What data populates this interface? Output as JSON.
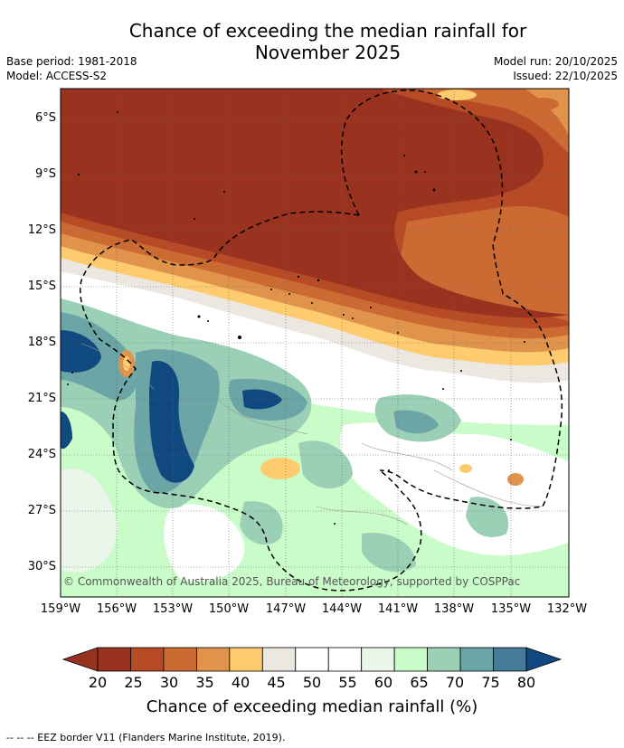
{
  "title_line1": "Chance of exceeding the median rainfall for",
  "title_line2": "November 2025",
  "base_period": "Base period: 1981-2018",
  "model": "Model: ACCESS-S2",
  "model_run": "Model run: 20/10/2025",
  "issued": "Issued: 22/10/2025",
  "lat_labels": [
    "6°S",
    "9°S",
    "12°S",
    "15°S",
    "18°S",
    "21°S",
    "24°S",
    "27°S",
    "30°S"
  ],
  "lon_labels": [
    "159°W",
    "156°W",
    "153°W",
    "150°W",
    "147°W",
    "144°W",
    "141°W",
    "138°W",
    "135°W",
    "132°W"
  ],
  "copyright": "© Commonwealth of Australia 2025, Bureau of Meteorology, supported by COSPPac",
  "colorbar": {
    "ticks": [
      "20",
      "25",
      "30",
      "35",
      "40",
      "45",
      "50",
      "55",
      "60",
      "65",
      "70",
      "75",
      "80"
    ],
    "colors": [
      "#9a3220",
      "#b64b26",
      "#cc6a34",
      "#e0944b",
      "#fecb6e",
      "#ece7e1",
      "#ffffff",
      "#ffffff",
      "#e9f6e9",
      "#c9fcc9",
      "#9bcfb6",
      "#6ba5a5",
      "#467c9a"
    ],
    "low_color": "#95331f",
    "high_color": "#10497f",
    "title": "Chance of exceeding median rainfall (%)"
  },
  "footnote": "--  --  -- EEZ border V11 (Flanders Marine Institute, 2019)."
}
